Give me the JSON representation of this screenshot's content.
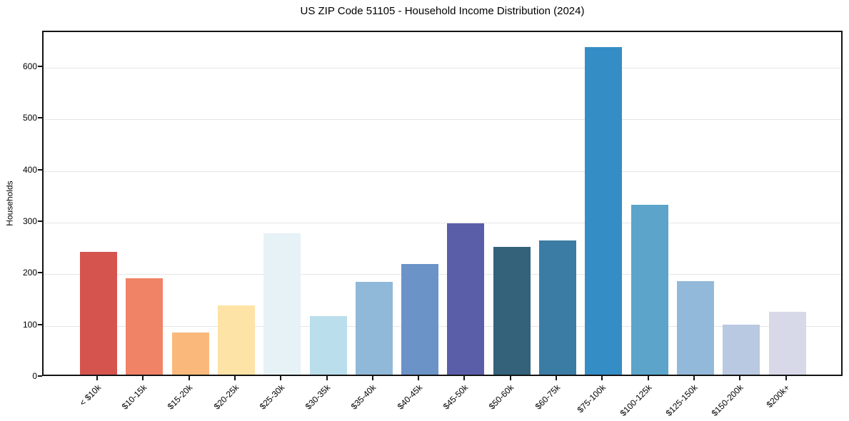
{
  "chart_data": {
    "type": "bar",
    "title": "US ZIP Code 51105 - Household Income Distribution (2024)",
    "xlabel": "",
    "ylabel": "Households",
    "categories": [
      "< $10k",
      "$10-15k",
      "$15-20k",
      "$20-25k",
      "$25-30k",
      "$30-35k",
      "$35-40k",
      "$40-45k",
      "$45-50k",
      "$50-60k",
      "$60-75k",
      "$75-100k",
      "$100-125k",
      "$125-150k",
      "$150-200k",
      "$200k+"
    ],
    "values": [
      238,
      187,
      82,
      134,
      274,
      114,
      180,
      214,
      293,
      247,
      260,
      635,
      329,
      181,
      97,
      122
    ],
    "bar_colors": [
      "#d6544e",
      "#f08365",
      "#fab97b",
      "#fde3a6",
      "#e7f2f7",
      "#badeeb",
      "#90b8d9",
      "#6c93c7",
      "#5a5ea9",
      "#34627a",
      "#3b7ca4",
      "#358dc5",
      "#5ca4ca",
      "#93b9da",
      "#b9c9e1",
      "#d7d9e8"
    ],
    "yticks": [
      0,
      100,
      200,
      300,
      400,
      500,
      600
    ],
    "ylim": [
      0,
      669
    ],
    "grid": "horizontal",
    "gridline_color": "#e6e6e6",
    "spine_color": "#141414",
    "background": "#ffffff",
    "legend": "none",
    "x_tick_label_rotation_deg": 45
  }
}
